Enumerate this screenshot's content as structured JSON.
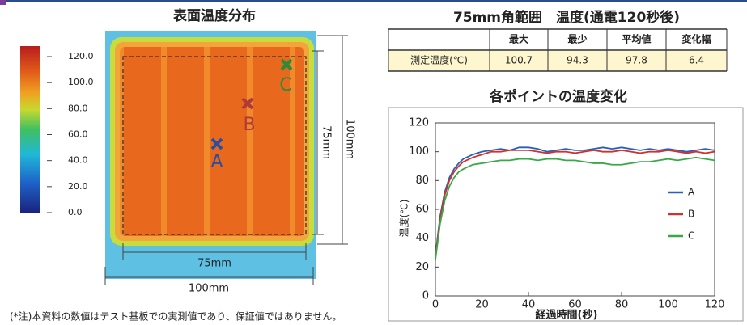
{
  "heatmap": {
    "title": "表面温度分布",
    "colorbar": {
      "lim": [
        0,
        120
      ],
      "ticks": [
        {
          "value": 120,
          "label": "120.0"
        },
        {
          "value": 100,
          "label": "100.0"
        },
        {
          "value": 80,
          "label": "80.0"
        },
        {
          "value": 60,
          "label": "60.0"
        },
        {
          "value": 40,
          "label": "40.0"
        },
        {
          "value": 20,
          "label": "20.0"
        },
        {
          "value": 0,
          "label": "0.0"
        }
      ]
    },
    "points": [
      {
        "label": "A",
        "color": "#2a4fa0"
      },
      {
        "label": "B",
        "color": "#b03a3a"
      },
      {
        "label": "C",
        "color": "#2e8b3a"
      }
    ],
    "dimensions": {
      "inner": "75mm",
      "outer": "100mm"
    }
  },
  "table": {
    "title": "75mm角範囲　温度(通電120秒後)",
    "header": [
      "最大",
      "最少",
      "平均値",
      "変化幅"
    ],
    "rows": [
      [
        "測定温度(℃)",
        "100.7",
        "94.3",
        "97.8",
        "6.4"
      ]
    ]
  },
  "note": "(*注)本資料の数値はテスト基板での実測値であり、保証値ではありません。",
  "chart_data": {
    "type": "line",
    "title": "各ポイントの温度変化",
    "y_label": "温度(℃)",
    "x_label": "経過時間(秒)",
    "x": [
      0,
      2,
      4,
      6,
      8,
      10,
      12,
      16,
      20,
      24,
      28,
      32,
      36,
      40,
      44,
      48,
      52,
      56,
      60,
      64,
      68,
      72,
      76,
      80,
      84,
      88,
      92,
      96,
      100,
      104,
      108,
      112,
      116,
      120
    ],
    "xlim": [
      0,
      120
    ],
    "xticks": [
      0,
      20,
      40,
      60,
      80,
      100,
      120
    ],
    "ylim": [
      0,
      120
    ],
    "yticks": [
      0,
      20,
      40,
      60,
      80,
      100,
      120
    ],
    "series": [
      {
        "name": "A",
        "color": "#2a5fb8",
        "values": [
          28,
          55,
          72,
          82,
          88,
          92,
          95,
          98,
          100,
          101,
          102,
          101,
          103,
          103,
          102,
          100,
          101,
          102,
          101,
          101,
          102,
          103,
          102,
          103,
          102,
          101,
          102,
          101,
          102,
          101,
          100,
          101,
          102,
          101
        ]
      },
      {
        "name": "B",
        "color": "#d0312d",
        "values": [
          27,
          53,
          70,
          80,
          86,
          90,
          93,
          96,
          98,
          100,
          100,
          101,
          101,
          101,
          100,
          99,
          100,
          100,
          99,
          100,
          101,
          100,
          100,
          101,
          100,
          99,
          100,
          100,
          101,
          100,
          99,
          100,
          99,
          100
        ]
      },
      {
        "name": "C",
        "color": "#3aa84a",
        "values": [
          25,
          50,
          66,
          76,
          82,
          86,
          88,
          91,
          92,
          93,
          94,
          94,
          95,
          95,
          94,
          95,
          95,
          94,
          94,
          93,
          92,
          92,
          91,
          91,
          92,
          93,
          93,
          94,
          95,
          94,
          95,
          96,
          95,
          94
        ]
      }
    ]
  }
}
